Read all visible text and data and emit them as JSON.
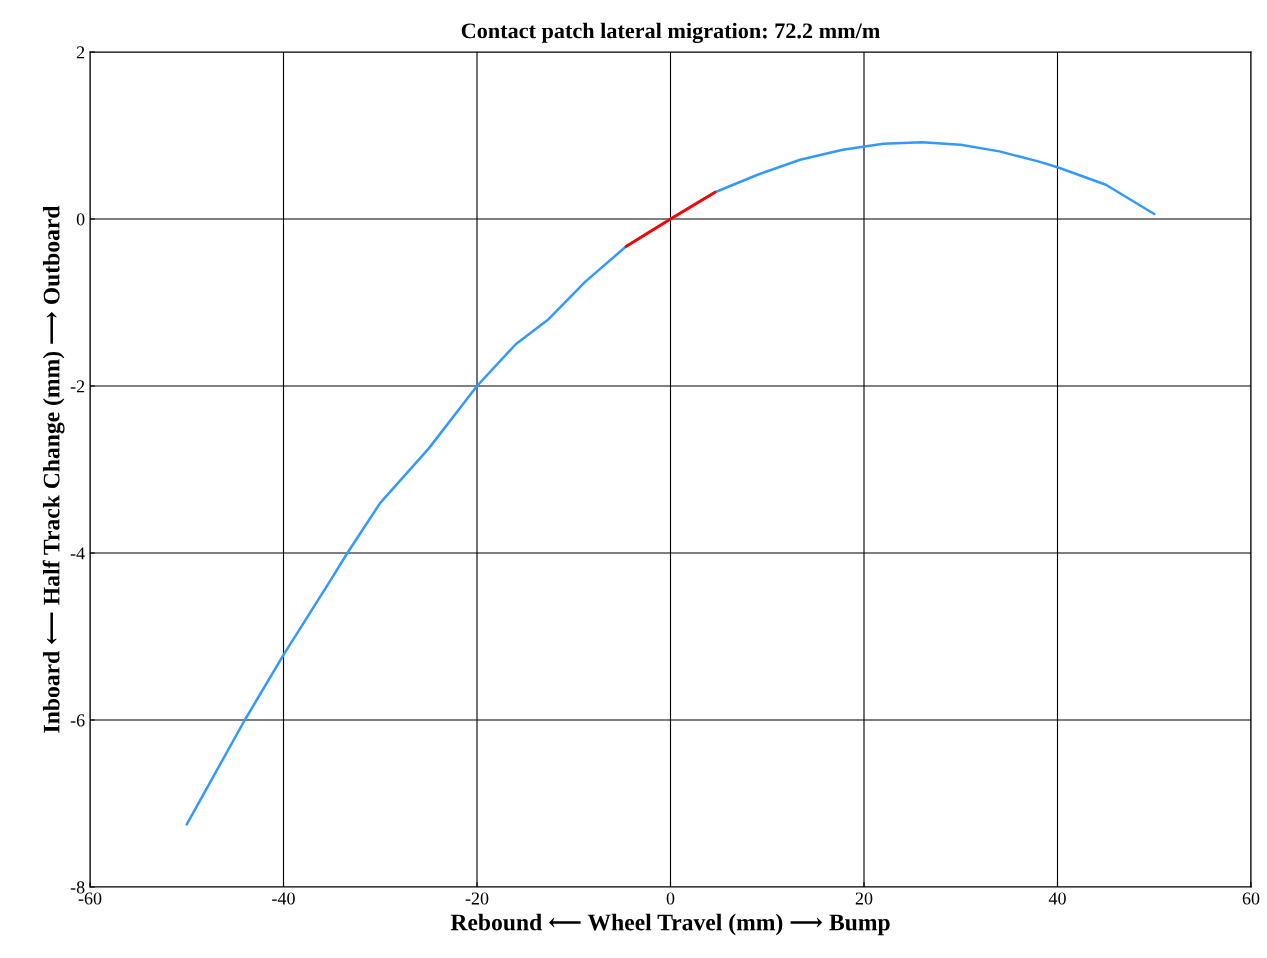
{
  "chart_data": {
    "type": "line",
    "title": "Contact patch lateral migration: 72.2 mm/m",
    "xlabel": "Rebound ⟵ Wheel Travel (mm) ⟶ Bump",
    "ylabel": "Inboard ⟵ Half Track Change (mm) ⟶ Outboard",
    "series": [
      {
        "color": "#3399ff",
        "x": [
          -50,
          -44,
          -40,
          -35,
          -33.4,
          -30,
          -25,
          -20,
          -16,
          -12.6,
          -8.8,
          -4.6,
          0,
          4.6,
          9,
          13.4,
          17.8,
          22,
          26,
          30,
          34,
          38,
          40,
          45,
          50
        ],
        "values": [
          -7.25,
          -6.0,
          -5.22,
          -4.3,
          -4.0,
          -3.4,
          -2.75,
          -2.0,
          -1.5,
          -1.2,
          -0.75,
          -0.33,
          0,
          0.32,
          0.53,
          0.71,
          0.83,
          0.9,
          0.92,
          0.89,
          0.81,
          0.69,
          0.62,
          0.41,
          0.06
        ]
      },
      {
        "color": "#ff0000",
        "x": [
          -4.6,
          0,
          4.6
        ],
        "values": [
          -0.33,
          0,
          0.32
        ]
      }
    ],
    "xlim": [
      -60,
      60
    ],
    "xticks": [
      -60,
      -40,
      -20,
      0,
      20,
      40,
      60
    ],
    "ylim": [
      -8,
      2
    ],
    "yticks": [
      -8,
      -6,
      -4,
      -2,
      0,
      2
    ],
    "grid": true
  }
}
